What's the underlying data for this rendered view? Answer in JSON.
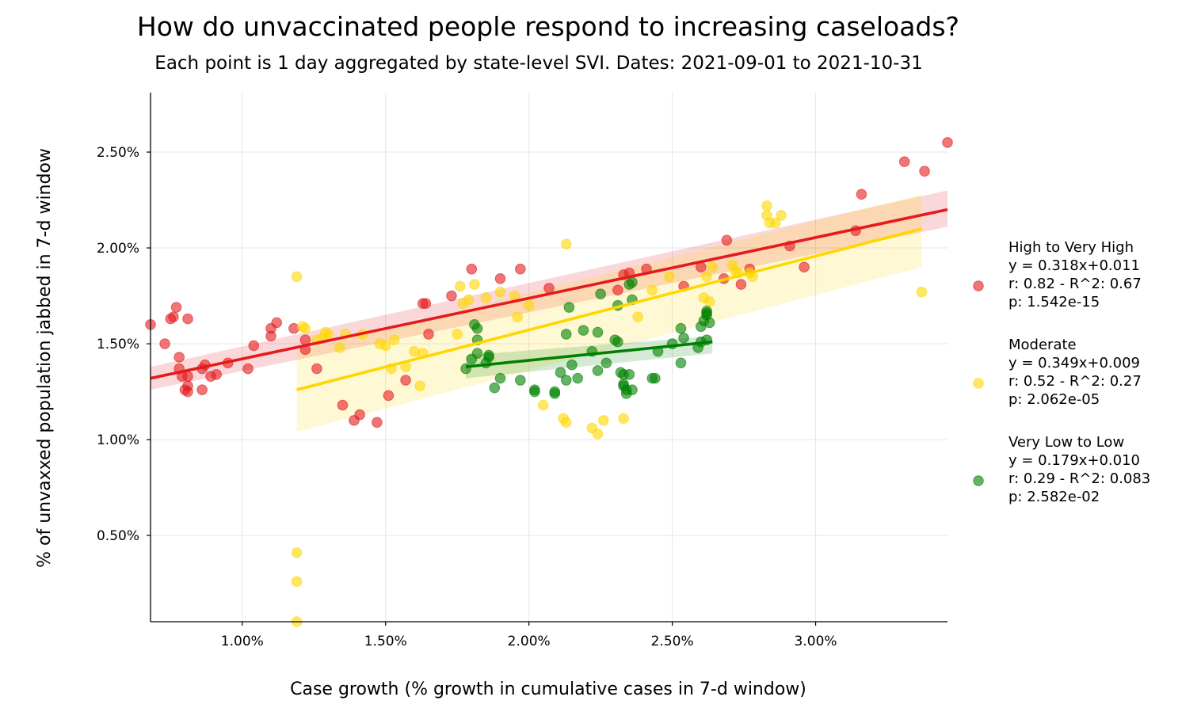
{
  "chart_data": {
    "type": "scatter",
    "title": "How do unvaccinated people respond to increasing caseloads?",
    "subtitle": "Each point is 1 day aggregated by state-level SVI. Dates: 2021-09-01 to 2021-10-31",
    "xlabel": "Case growth (% growth in cumulative cases in 7-d window)",
    "ylabel": "% of unvaxxed population jabbed in 7-d window",
    "xlim": [
      0.68,
      3.46
    ],
    "ylim": [
      0.05,
      2.81
    ],
    "xticks": [
      1.0,
      1.5,
      2.0,
      2.5,
      3.0
    ],
    "xtick_labels": [
      "1.00%",
      "1.50%",
      "2.00%",
      "2.50%",
      "3.00%"
    ],
    "yticks": [
      0.5,
      1.0,
      1.5,
      2.0,
      2.5
    ],
    "ytick_labels": [
      "0.50%",
      "1.00%",
      "1.50%",
      "2.00%",
      "2.50%"
    ],
    "grid": true,
    "legend_position": "right",
    "series": [
      {
        "name": "High to Very High",
        "legend_lines": [
          "High to Very High",
          "y = 0.318x+0.011",
          "r: 0.82  -  R^2: 0.67",
          "p: 1.542e-15"
        ],
        "color": "#e41a1c",
        "fit": {
          "x": [
            0.68,
            3.46
          ],
          "y": [
            1.32,
            2.2
          ]
        },
        "band": {
          "x": [
            0.68,
            3.46
          ],
          "upper": [
            1.38,
            2.3
          ],
          "lower": [
            1.26,
            2.11
          ]
        },
        "points": [
          [
            0.68,
            1.6
          ],
          [
            0.73,
            1.5
          ],
          [
            0.75,
            1.63
          ],
          [
            0.76,
            1.64
          ],
          [
            0.77,
            1.69
          ],
          [
            0.78,
            1.43
          ],
          [
            0.78,
            1.37
          ],
          [
            0.79,
            1.33
          ],
          [
            0.8,
            1.26
          ],
          [
            0.81,
            1.28
          ],
          [
            0.81,
            1.25
          ],
          [
            0.81,
            1.33
          ],
          [
            0.81,
            1.63
          ],
          [
            0.86,
            1.26
          ],
          [
            0.86,
            1.37
          ],
          [
            0.87,
            1.39
          ],
          [
            0.89,
            1.33
          ],
          [
            0.91,
            1.34
          ],
          [
            0.95,
            1.4
          ],
          [
            1.02,
            1.37
          ],
          [
            1.04,
            1.49
          ],
          [
            1.1,
            1.54
          ],
          [
            1.1,
            1.58
          ],
          [
            1.12,
            1.61
          ],
          [
            1.18,
            1.58
          ],
          [
            1.22,
            1.52
          ],
          [
            1.22,
            1.47
          ],
          [
            1.26,
            1.37
          ],
          [
            1.35,
            1.18
          ],
          [
            1.39,
            1.1
          ],
          [
            1.41,
            1.13
          ],
          [
            1.47,
            1.09
          ],
          [
            1.51,
            1.23
          ],
          [
            1.57,
            1.31
          ],
          [
            1.63,
            1.71
          ],
          [
            1.64,
            1.71
          ],
          [
            1.65,
            1.55
          ],
          [
            1.73,
            1.75
          ],
          [
            1.8,
            1.89
          ],
          [
            1.9,
            1.84
          ],
          [
            1.97,
            1.89
          ],
          [
            2.07,
            1.79
          ],
          [
            2.31,
            1.78
          ],
          [
            2.33,
            1.86
          ],
          [
            2.35,
            1.87
          ],
          [
            2.41,
            1.89
          ],
          [
            2.54,
            1.8
          ],
          [
            2.6,
            1.9
          ],
          [
            2.68,
            1.84
          ],
          [
            2.69,
            2.04
          ],
          [
            2.74,
            1.81
          ],
          [
            2.77,
            1.89
          ],
          [
            2.91,
            2.01
          ],
          [
            2.96,
            1.9
          ],
          [
            3.14,
            2.09
          ],
          [
            3.16,
            2.28
          ],
          [
            3.31,
            2.45
          ],
          [
            3.38,
            2.4
          ],
          [
            3.46,
            2.55
          ]
        ]
      },
      {
        "name": "Moderate",
        "legend_lines": [
          "Moderate",
          "y = 0.349x+0.009",
          "r: 0.52  -  R^2: 0.27",
          "p: 2.062e-05"
        ],
        "color": "#ffd700",
        "fit": {
          "x": [
            1.19,
            3.37
          ],
          "y": [
            1.26,
            2.1
          ]
        },
        "band": {
          "x": [
            1.19,
            3.37
          ],
          "upper": [
            1.46,
            2.28
          ],
          "lower": [
            1.04,
            1.9
          ]
        },
        "points": [
          [
            1.19,
            1.85
          ],
          [
            1.19,
            0.41
          ],
          [
            1.19,
            0.26
          ],
          [
            1.19,
            0.05
          ],
          [
            1.21,
            1.59
          ],
          [
            1.22,
            1.58
          ],
          [
            1.26,
            1.52
          ],
          [
            1.28,
            1.53
          ],
          [
            1.29,
            1.56
          ],
          [
            1.3,
            1.55
          ],
          [
            1.34,
            1.48
          ],
          [
            1.36,
            1.55
          ],
          [
            1.42,
            1.55
          ],
          [
            1.48,
            1.5
          ],
          [
            1.5,
            1.49
          ],
          [
            1.52,
            1.37
          ],
          [
            1.53,
            1.52
          ],
          [
            1.57,
            1.38
          ],
          [
            1.6,
            1.46
          ],
          [
            1.62,
            1.28
          ],
          [
            1.63,
            1.45
          ],
          [
            1.75,
            1.55
          ],
          [
            1.76,
            1.8
          ],
          [
            1.77,
            1.71
          ],
          [
            1.79,
            1.73
          ],
          [
            1.81,
            1.81
          ],
          [
            1.85,
            1.74
          ],
          [
            1.9,
            1.77
          ],
          [
            1.95,
            1.75
          ],
          [
            1.96,
            1.64
          ],
          [
            2.0,
            1.7
          ],
          [
            2.05,
            1.18
          ],
          [
            2.12,
            1.11
          ],
          [
            2.13,
            1.09
          ],
          [
            2.13,
            2.02
          ],
          [
            2.22,
            1.06
          ],
          [
            2.24,
            1.03
          ],
          [
            2.26,
            1.1
          ],
          [
            2.33,
            1.11
          ],
          [
            2.38,
            1.64
          ],
          [
            2.43,
            1.78
          ],
          [
            2.49,
            1.85
          ],
          [
            2.61,
            1.74
          ],
          [
            2.62,
            1.85
          ],
          [
            2.63,
            1.72
          ],
          [
            2.64,
            1.9
          ],
          [
            2.71,
            1.91
          ],
          [
            2.72,
            1.88
          ],
          [
            2.73,
            1.87
          ],
          [
            2.77,
            1.87
          ],
          [
            2.78,
            1.85
          ],
          [
            2.83,
            2.22
          ],
          [
            2.83,
            2.17
          ],
          [
            2.84,
            2.13
          ],
          [
            2.86,
            2.13
          ],
          [
            2.88,
            2.17
          ],
          [
            3.37,
            1.77
          ]
        ]
      },
      {
        "name": "Very Low to Low",
        "legend_lines": [
          "Very Low to Low",
          "y = 0.179x+0.010",
          "r: 0.29  -  R^2: 0.083",
          "p: 2.582e-02"
        ],
        "color": "#008000",
        "fit": {
          "x": [
            1.78,
            2.64
          ],
          "y": [
            1.38,
            1.51
          ]
        },
        "band": {
          "x": [
            1.78,
            2.64
          ],
          "upper": [
            1.44,
            1.54
          ],
          "lower": [
            1.32,
            1.45
          ]
        },
        "points": [
          [
            1.78,
            1.37
          ],
          [
            1.8,
            1.42
          ],
          [
            1.81,
            1.6
          ],
          [
            1.82,
            1.58
          ],
          [
            1.82,
            1.52
          ],
          [
            1.82,
            1.45
          ],
          [
            1.85,
            1.4
          ],
          [
            1.86,
            1.44
          ],
          [
            1.86,
            1.43
          ],
          [
            1.88,
            1.27
          ],
          [
            1.9,
            1.32
          ],
          [
            1.97,
            1.31
          ],
          [
            2.02,
            1.25
          ],
          [
            2.02,
            1.26
          ],
          [
            2.09,
            1.24
          ],
          [
            2.09,
            1.25
          ],
          [
            2.11,
            1.35
          ],
          [
            2.13,
            1.31
          ],
          [
            2.13,
            1.55
          ],
          [
            2.14,
            1.69
          ],
          [
            2.15,
            1.39
          ],
          [
            2.17,
            1.32
          ],
          [
            2.19,
            1.57
          ],
          [
            2.22,
            1.46
          ],
          [
            2.24,
            1.36
          ],
          [
            2.24,
            1.56
          ],
          [
            2.25,
            1.76
          ],
          [
            2.27,
            1.4
          ],
          [
            2.3,
            1.52
          ],
          [
            2.31,
            1.51
          ],
          [
            2.31,
            1.7
          ],
          [
            2.32,
            1.35
          ],
          [
            2.33,
            1.34
          ],
          [
            2.33,
            1.28
          ],
          [
            2.33,
            1.29
          ],
          [
            2.34,
            1.26
          ],
          [
            2.34,
            1.24
          ],
          [
            2.35,
            1.34
          ],
          [
            2.35,
            1.81
          ],
          [
            2.36,
            1.26
          ],
          [
            2.36,
            1.73
          ],
          [
            2.36,
            1.82
          ],
          [
            2.43,
            1.32
          ],
          [
            2.44,
            1.32
          ],
          [
            2.45,
            1.46
          ],
          [
            2.5,
            1.5
          ],
          [
            2.53,
            1.4
          ],
          [
            2.53,
            1.58
          ],
          [
            2.54,
            1.53
          ],
          [
            2.59,
            1.48
          ],
          [
            2.6,
            1.51
          ],
          [
            2.6,
            1.59
          ],
          [
            2.61,
            1.62
          ],
          [
            2.62,
            1.66
          ],
          [
            2.62,
            1.65
          ],
          [
            2.62,
            1.67
          ],
          [
            2.62,
            1.52
          ],
          [
            2.63,
            1.61
          ]
        ]
      }
    ]
  }
}
